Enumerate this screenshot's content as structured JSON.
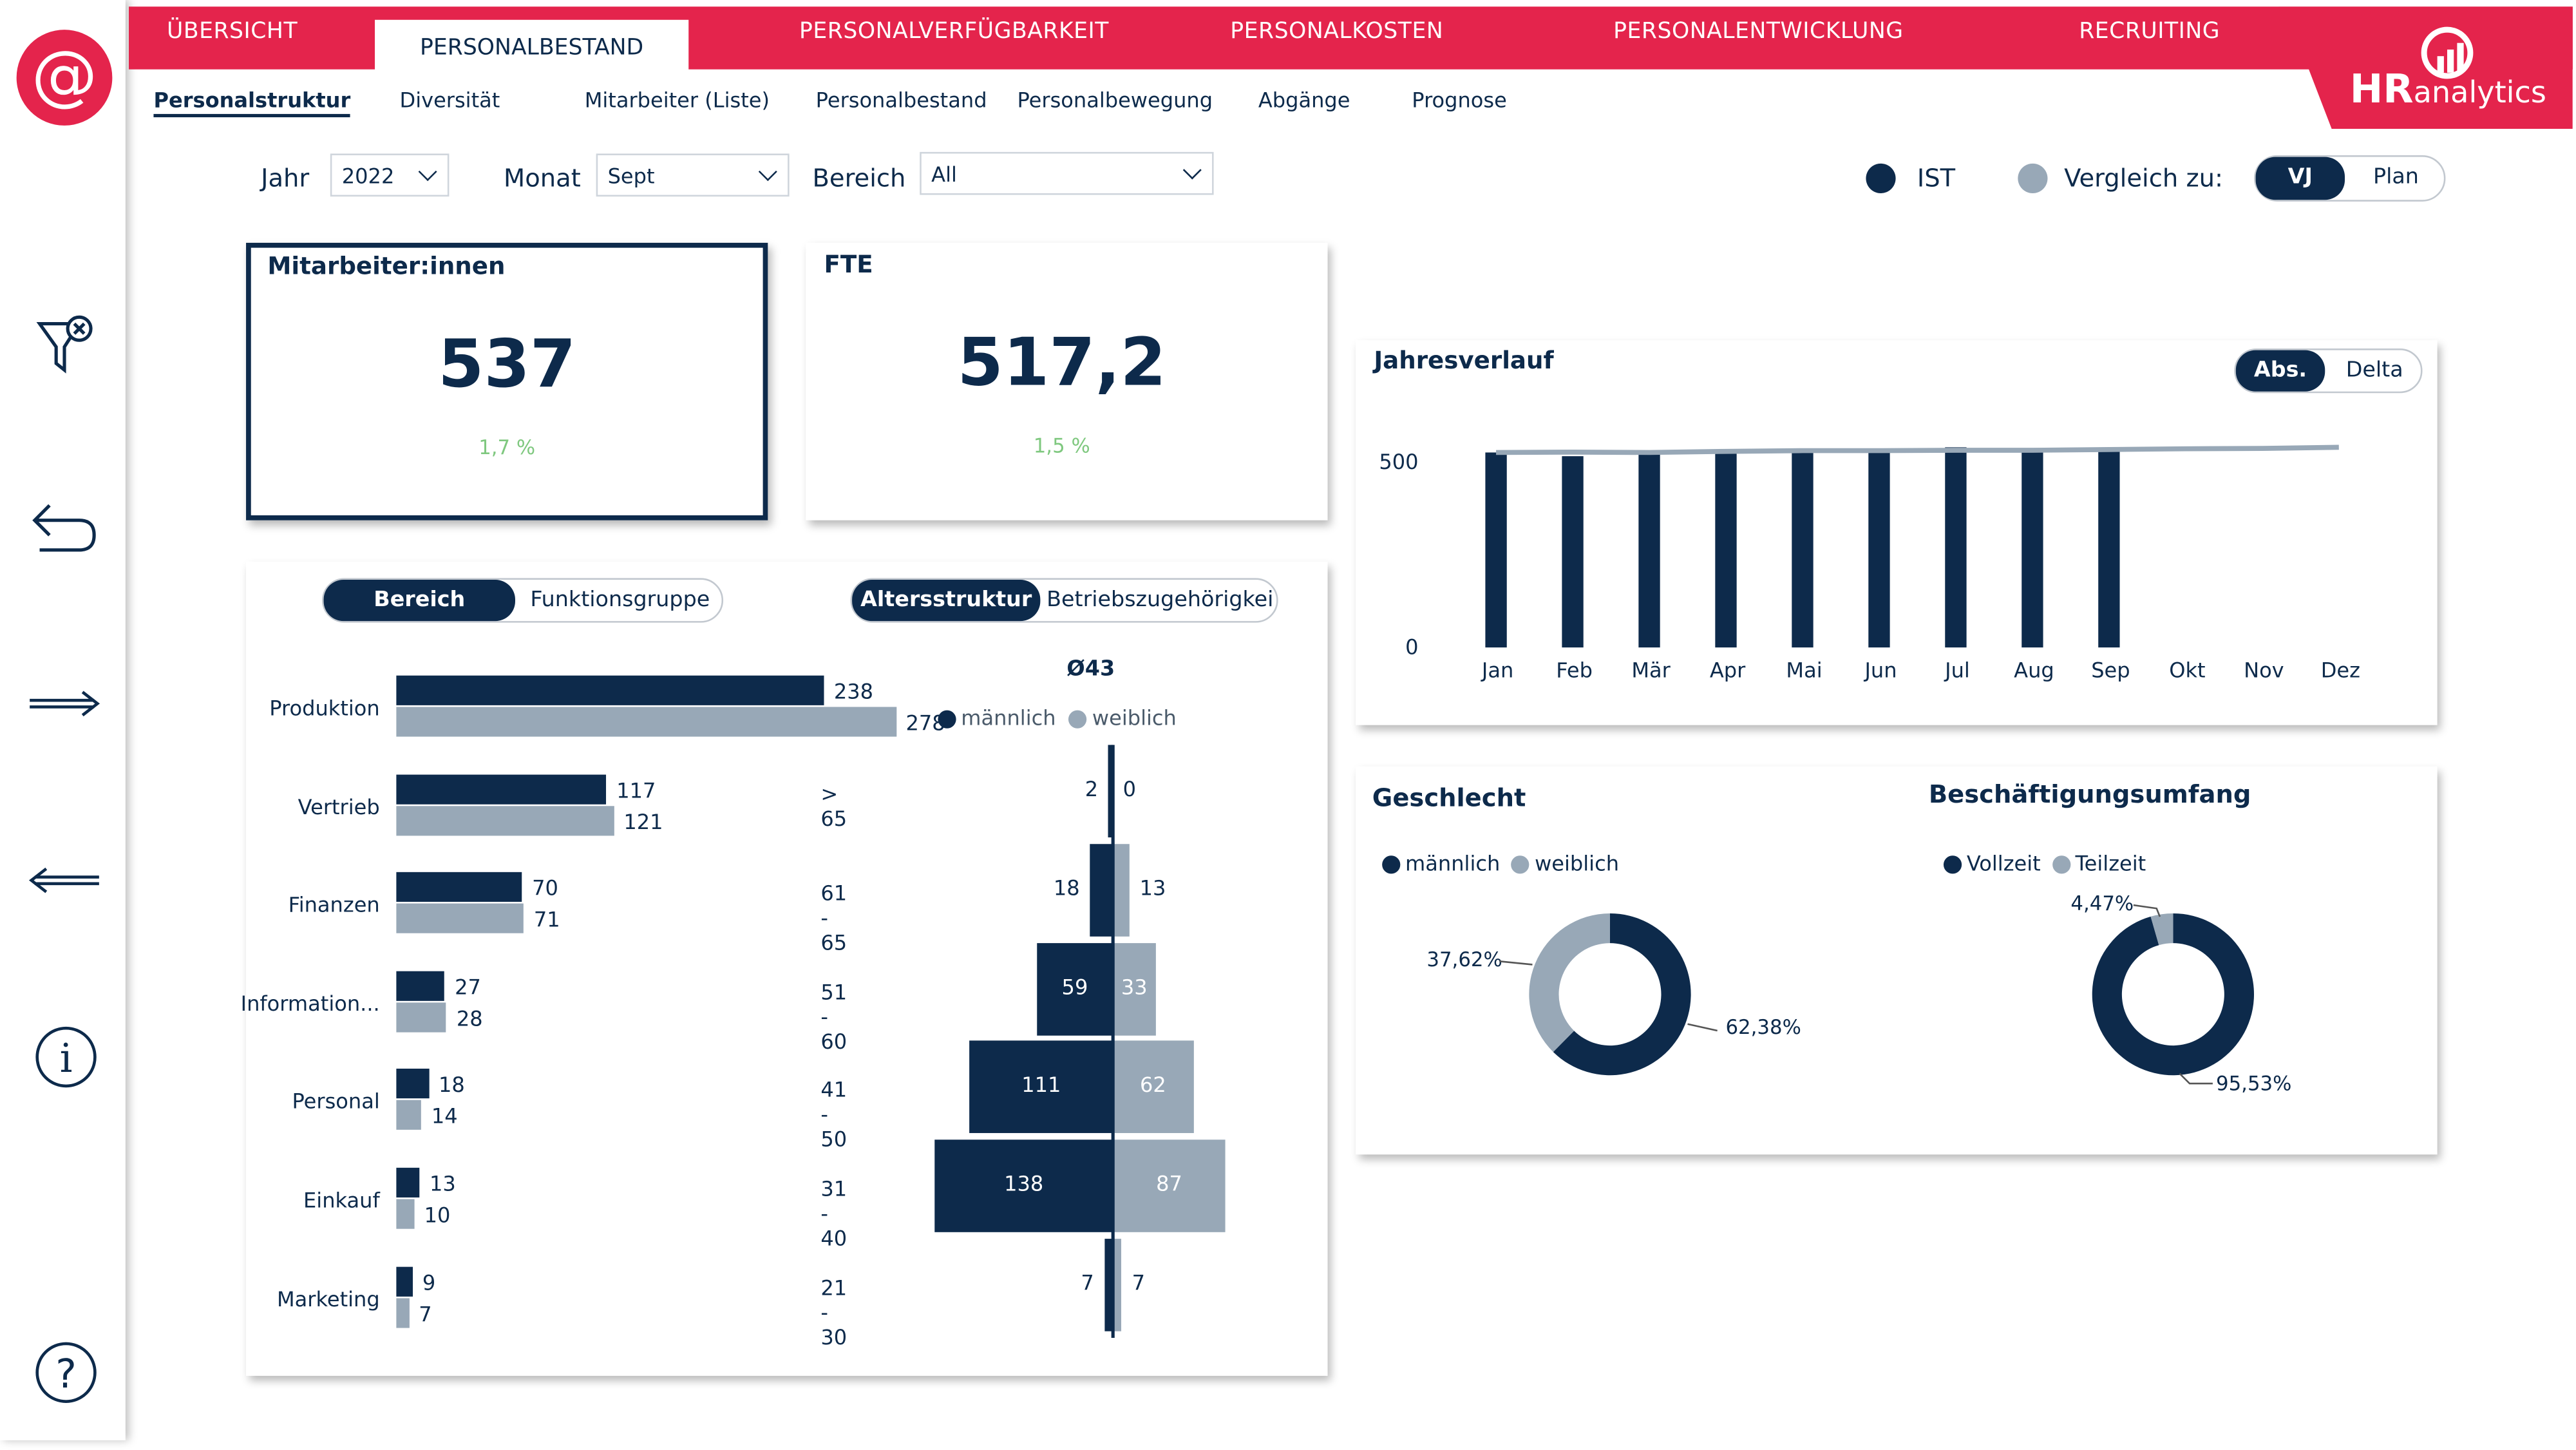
{
  "nav": {
    "tabs": [
      "ÜBERSICHT",
      "PERSONALBESTAND",
      "PERSONALVERFÜGBARKEIT",
      "PERSONALKOSTEN",
      "PERSONALENTWICKLUNG",
      "RECRUITING"
    ],
    "active": "PERSONALBESTAND",
    "logo_text_bold": "HR",
    "logo_text": "analytics"
  },
  "subnav": [
    "Personalstruktur",
    "Diversität",
    "Mitarbeiter (Liste)",
    "Personalbestand",
    "Personalbewegung",
    "Abgänge",
    "Prognose"
  ],
  "filters": {
    "jahr_label": "Jahr",
    "jahr_value": "2022",
    "monat_label": "Monat",
    "monat_value": "Sept",
    "bereich_label": "Bereich",
    "bereich_value": "All"
  },
  "legend_top": {
    "ist": "IST",
    "vergleich": "Vergleich zu:",
    "vj": "VJ",
    "plan": "Plan"
  },
  "kpi": {
    "mitarbeiter_title": "Mitarbeiter:innen",
    "mitarbeiter_value": "537",
    "mitarbeiter_delta": "1,7 %",
    "fte_title": "FTE",
    "fte_value": "517,2",
    "fte_delta": "1,5 %"
  },
  "colors": {
    "accent": "#e4244c",
    "navy": "#0d2a4b",
    "grey": "#98a8b7",
    "green": "#7fc87f"
  },
  "toggles": {
    "bereich": "Bereich",
    "funktionsgruppe": "Funktionsgruppe",
    "altersstruktur": "Altersstruktur",
    "betriebszugehoerigkeit": "Betriebszugehörigkei"
  },
  "jahresverlauf": {
    "title": "Jahresverlauf",
    "abs": "Abs.",
    "delta": "Delta"
  },
  "geschlecht": {
    "title": "Geschlecht",
    "legend_m": "männlich",
    "legend_w": "weiblich",
    "label_w": "37,62%",
    "label_m": "62,38%"
  },
  "umfang": {
    "title": "Beschäftigungsumfang",
    "legend_v": "Vollzeit",
    "legend_t": "Teilzeit",
    "label_t": "4,47%",
    "label_v": "95,53%"
  },
  "age_header": {
    "avg": "Ø43",
    "m": "männlich",
    "w": "weiblich"
  },
  "sidebar_icons": [
    "at-logo-icon",
    "filter-clear-icon",
    "undo-arrow-icon",
    "arrow-right-icon",
    "arrow-left-icon",
    "info-icon",
    "help-icon"
  ],
  "chart_data": [
    {
      "type": "bar",
      "orientation": "horizontal",
      "categories": [
        "Produktion",
        "Vertrieb",
        "Finanzen",
        "Information...",
        "Personal",
        "Einkauf",
        "Marketing"
      ],
      "series": [
        {
          "values": [
            238,
            117,
            70,
            27,
            18,
            13,
            9
          ]
        },
        {
          "values": [
            278,
            121,
            71,
            28,
            14,
            10,
            7
          ]
        }
      ]
    },
    {
      "type": "bar",
      "orientation": "population-pyramid",
      "categories": [
        "> 65",
        "61 - 65",
        "51 - 60",
        "41 - 50",
        "31 - 40",
        "21 - 30"
      ],
      "series": [
        {
          "name": "männlich",
          "values": [
            2,
            18,
            59,
            111,
            138,
            7
          ]
        },
        {
          "name": "weiblich",
          "values": [
            0,
            13,
            33,
            62,
            87,
            7
          ]
        }
      ]
    },
    {
      "type": "bar",
      "title": "Jahresverlauf",
      "categories": [
        "Jan",
        "Feb",
        "Mär",
        "Apr",
        "Mai",
        "Jun",
        "Jul",
        "Aug",
        "Sep",
        "Okt",
        "Nov",
        "Dez"
      ],
      "ylim": [
        0,
        560
      ],
      "yticks": [
        0,
        500
      ],
      "series": [
        {
          "name": "IST",
          "values": [
            527,
            517,
            530,
            530,
            538,
            534,
            541,
            536,
            537,
            null,
            null,
            null
          ]
        },
        {
          "name": "VJ",
          "values": [
            527,
            528,
            527,
            530,
            532,
            532,
            533,
            533,
            535,
            537,
            538,
            541
          ]
        }
      ]
    },
    {
      "type": "pie",
      "title": "Geschlecht",
      "labels": [
        "männlich",
        "weiblich"
      ],
      "values": [
        62.38,
        37.62
      ]
    },
    {
      "type": "pie",
      "title": "Beschäftigungsumfang",
      "labels": [
        "Vollzeit",
        "Teilzeit"
      ],
      "values": [
        95.53,
        4.47
      ]
    }
  ]
}
